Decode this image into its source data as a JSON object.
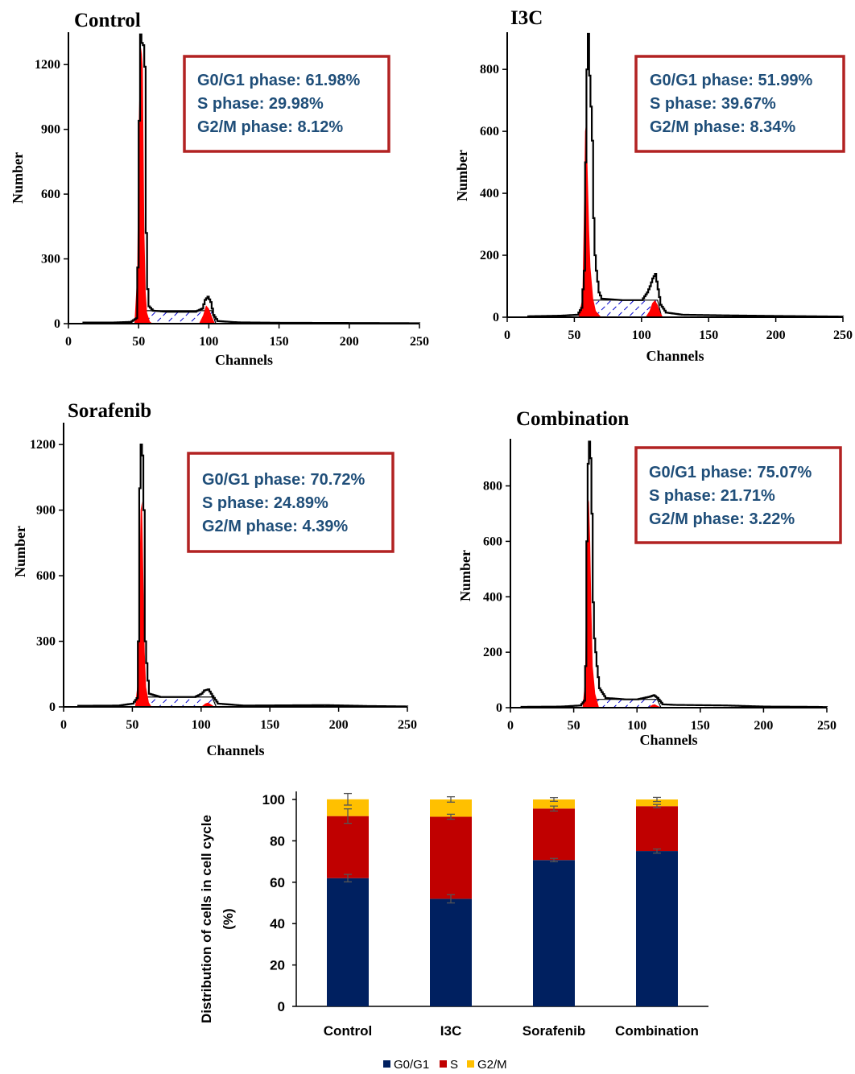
{
  "colors": {
    "peak_fill": "#ff0000",
    "box_border": "#b22222",
    "annotation_text": "#1f4e79",
    "bar_g0g1": "#002060",
    "bar_s": "#c00000",
    "bar_g2m": "#ffc000",
    "s_phase_hatch": "#0000cc"
  },
  "chart_data": [
    {
      "type": "histogram",
      "title": "Control",
      "xlabel": "Channels",
      "ylabel": "Number",
      "xlim": [
        0,
        250
      ],
      "ylim": [
        0,
        1350
      ],
      "xticks": [
        "0",
        "50",
        "100",
        "150",
        "200",
        "250"
      ],
      "yticks": [
        "0",
        "300",
        "600",
        "900",
        "1200"
      ],
      "annotations": [
        "G0/G1 phase: 61.98%",
        "S phase: 29.98%",
        "G2/M phase: 8.12%"
      ],
      "profile": [
        [
          10,
          5
        ],
        [
          30,
          5
        ],
        [
          44,
          8
        ],
        [
          48,
          25
        ],
        [
          49,
          260
        ],
        [
          50,
          940
        ],
        [
          51,
          1340
        ],
        [
          52,
          1300
        ],
        [
          53,
          1290
        ],
        [
          54,
          1190
        ],
        [
          55,
          420
        ],
        [
          56,
          160
        ],
        [
          57,
          80
        ],
        [
          60,
          60
        ],
        [
          70,
          55
        ],
        [
          80,
          55
        ],
        [
          90,
          55
        ],
        [
          95,
          70
        ],
        [
          97,
          110
        ],
        [
          99,
          125
        ],
        [
          101,
          100
        ],
        [
          103,
          40
        ],
        [
          106,
          12
        ],
        [
          120,
          6
        ],
        [
          150,
          4
        ],
        [
          205,
          3
        ],
        [
          250,
          2
        ]
      ],
      "g1_peak": [
        [
          47,
          0
        ],
        [
          49,
          230
        ],
        [
          50,
          900
        ],
        [
          51,
          1200
        ],
        [
          52,
          1280
        ],
        [
          53,
          1180
        ],
        [
          54,
          450
        ],
        [
          55,
          150
        ],
        [
          56,
          50
        ],
        [
          58,
          10
        ],
        [
          60,
          0
        ]
      ],
      "g2_peak": [
        [
          93,
          0
        ],
        [
          96,
          40
        ],
        [
          98,
          85
        ],
        [
          100,
          70
        ],
        [
          102,
          35
        ],
        [
          104,
          5
        ],
        [
          106,
          0
        ]
      ],
      "s_phase": {
        "start": 53,
        "end": 102,
        "level": 60
      }
    },
    {
      "type": "histogram",
      "title": "I3C",
      "xlabel": "Channels",
      "ylabel": "Number",
      "xlim": [
        0,
        250
      ],
      "ylim": [
        0,
        920
      ],
      "xticks": [
        "0",
        "50",
        "100",
        "150",
        "200",
        "250"
      ],
      "yticks": [
        "0",
        "200",
        "400",
        "600",
        "800"
      ],
      "annotations": [
        "G0/G1 phase: 51.99%",
        "S phase: 39.67%",
        "G2/M phase: 8.34%"
      ],
      "profile": [
        [
          15,
          3
        ],
        [
          40,
          5
        ],
        [
          52,
          8
        ],
        [
          55,
          30
        ],
        [
          57,
          150
        ],
        [
          58,
          500
        ],
        [
          59,
          800
        ],
        [
          60,
          915
        ],
        [
          61,
          780
        ],
        [
          62,
          680
        ],
        [
          63,
          570
        ],
        [
          64,
          320
        ],
        [
          65,
          200
        ],
        [
          66,
          150
        ],
        [
          68,
          80
        ],
        [
          70,
          60
        ],
        [
          85,
          55
        ],
        [
          100,
          55
        ],
        [
          104,
          80
        ],
        [
          106,
          100
        ],
        [
          108,
          125
        ],
        [
          110,
          140
        ],
        [
          112,
          90
        ],
        [
          114,
          40
        ],
        [
          118,
          15
        ],
        [
          130,
          8
        ],
        [
          160,
          6
        ],
        [
          200,
          4
        ],
        [
          250,
          2
        ]
      ],
      "g1_peak": [
        [
          53,
          0
        ],
        [
          56,
          60
        ],
        [
          57,
          300
        ],
        [
          58,
          600
        ],
        [
          59,
          630
        ],
        [
          60,
          450
        ],
        [
          61,
          280
        ],
        [
          62,
          160
        ],
        [
          64,
          60
        ],
        [
          66,
          20
        ],
        [
          70,
          0
        ]
      ],
      "g2_peak": [
        [
          103,
          0
        ],
        [
          106,
          20
        ],
        [
          108,
          45
        ],
        [
          110,
          55
        ],
        [
          112,
          40
        ],
        [
          114,
          15
        ],
        [
          116,
          0
        ]
      ],
      "s_phase": {
        "start": 58,
        "end": 112,
        "level": 55
      }
    },
    {
      "type": "histogram",
      "title": "Sorafenib",
      "xlabel": "Channels",
      "ylabel": "Number",
      "xlim": [
        0,
        250
      ],
      "ylim": [
        0,
        1300
      ],
      "xticks": [
        "0",
        "50",
        "100",
        "150",
        "200",
        "250"
      ],
      "yticks": [
        "0",
        "300",
        "600",
        "900",
        "1200"
      ],
      "annotations": [
        "G0/G1 phase: 70.72%",
        "S phase: 24.89%",
        "G2/M phase: 4.39%"
      ],
      "profile": [
        [
          10,
          5
        ],
        [
          40,
          6
        ],
        [
          50,
          15
        ],
        [
          53,
          40
        ],
        [
          54,
          300
        ],
        [
          55,
          1000
        ],
        [
          56,
          1200
        ],
        [
          57,
          1150
        ],
        [
          58,
          900
        ],
        [
          59,
          300
        ],
        [
          60,
          200
        ],
        [
          61,
          120
        ],
        [
          62,
          60
        ],
        [
          70,
          45
        ],
        [
          80,
          45
        ],
        [
          95,
          45
        ],
        [
          100,
          60
        ],
        [
          102,
          75
        ],
        [
          105,
          80
        ],
        [
          108,
          50
        ],
        [
          112,
          15
        ],
        [
          130,
          6
        ],
        [
          190,
          8
        ],
        [
          220,
          4
        ],
        [
          250,
          2
        ]
      ],
      "g1_peak": [
        [
          52,
          0
        ],
        [
          54,
          120
        ],
        [
          55,
          500
        ],
        [
          56,
          900
        ],
        [
          57,
          940
        ],
        [
          58,
          600
        ],
        [
          59,
          250
        ],
        [
          60,
          90
        ],
        [
          62,
          20
        ],
        [
          64,
          0
        ]
      ],
      "g2_peak": [
        [
          100,
          0
        ],
        [
          103,
          15
        ],
        [
          105,
          20
        ],
        [
          107,
          12
        ],
        [
          110,
          0
        ]
      ],
      "s_phase": {
        "start": 58,
        "end": 108,
        "level": 45
      }
    },
    {
      "type": "histogram",
      "title": "Combination",
      "xlabel": "Channels",
      "ylabel": "Number",
      "xlim": [
        0,
        250
      ],
      "ylim": [
        0,
        970
      ],
      "xticks": [
        "0",
        "50",
        "100",
        "150",
        "200",
        "250"
      ],
      "yticks": [
        "0",
        "200",
        "400",
        "600",
        "800"
      ],
      "annotations": [
        "G0/G1 phase: 75.07%",
        "S phase: 21.71%",
        "G2/M phase: 3.22%"
      ],
      "profile": [
        [
          8,
          3
        ],
        [
          40,
          4
        ],
        [
          55,
          8
        ],
        [
          58,
          25
        ],
        [
          59,
          150
        ],
        [
          60,
          600
        ],
        [
          61,
          880
        ],
        [
          62,
          960
        ],
        [
          63,
          900
        ],
        [
          64,
          700
        ],
        [
          65,
          380
        ],
        [
          66,
          250
        ],
        [
          68,
          150
        ],
        [
          70,
          70
        ],
        [
          75,
          35
        ],
        [
          90,
          30
        ],
        [
          100,
          30
        ],
        [
          110,
          40
        ],
        [
          113,
          45
        ],
        [
          116,
          35
        ],
        [
          120,
          12
        ],
        [
          130,
          10
        ],
        [
          170,
          8
        ],
        [
          200,
          4
        ],
        [
          240,
          3
        ],
        [
          250,
          2
        ]
      ],
      "g1_peak": [
        [
          57,
          0
        ],
        [
          59,
          100
        ],
        [
          60,
          500
        ],
        [
          61,
          720
        ],
        [
          62,
          750
        ],
        [
          63,
          600
        ],
        [
          64,
          350
        ],
        [
          65,
          150
        ],
        [
          67,
          50
        ],
        [
          70,
          0
        ]
      ],
      "g2_peak": [
        [
          109,
          0
        ],
        [
          112,
          10
        ],
        [
          114,
          12
        ],
        [
          117,
          5
        ],
        [
          119,
          0
        ]
      ],
      "s_phase": {
        "start": 62,
        "end": 116,
        "level": 30
      }
    },
    {
      "type": "bar",
      "stacked": true,
      "categories": [
        "Control",
        "I3C",
        "Sorafenib",
        "Combination"
      ],
      "series": [
        {
          "name": "G0/G1",
          "values": [
            61.98,
            51.99,
            70.72,
            75.07
          ],
          "errors": [
            1.8,
            2.0,
            0.8,
            1.0
          ]
        },
        {
          "name": "S",
          "values": [
            29.98,
            39.67,
            24.89,
            21.71
          ],
          "errors": [
            3.5,
            1.2,
            1.2,
            0.8
          ]
        },
        {
          "name": "G2/M",
          "values": [
            8.12,
            8.34,
            4.39,
            3.22
          ],
          "errors": [
            2.8,
            1.3,
            0.9,
            1.0
          ]
        }
      ],
      "xlabel": "",
      "ylabel": "Distribution of cells in cell cycle (%)",
      "ylim": [
        0,
        100
      ],
      "yticks": [
        "0",
        "20",
        "40",
        "60",
        "80",
        "100"
      ],
      "legend": "bottom"
    }
  ]
}
